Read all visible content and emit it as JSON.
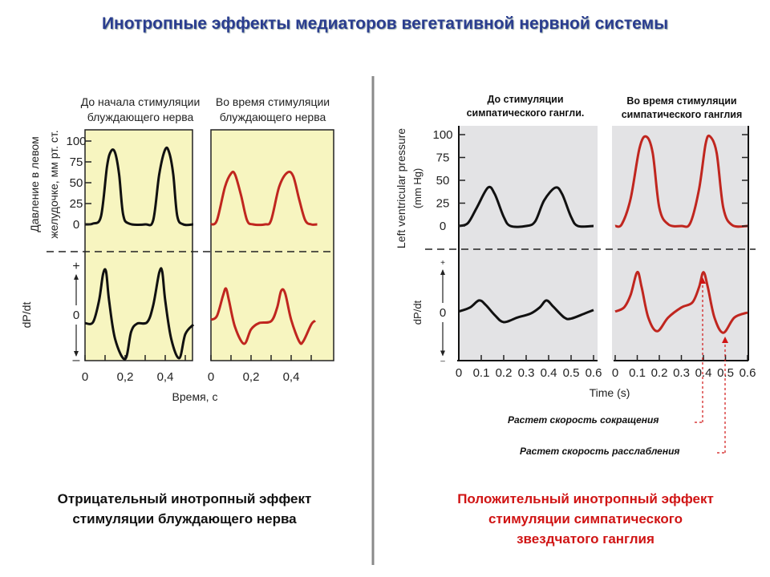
{
  "title": "Инотропные эффекты медиаторов вегетативной нервной системы",
  "colors": {
    "title": "#2a3d8f",
    "red_trace": "#c0261f",
    "black_trace": "#111111",
    "yellow_bg": "#f7f5c0",
    "grey_bg": "#e3e3e5",
    "caption_red": "#d01414"
  },
  "left": {
    "caption": [
      "Отрицательный инотропный эффект",
      "стимуляции блуждающего нерва"
    ],
    "panel_titles": [
      [
        "До начала стимуляции",
        "блуждающего нерва"
      ],
      [
        "Во время стимуляции",
        "блуждающего нерва"
      ]
    ]
  },
  "right": {
    "caption": [
      "Положительный инотропный эффект",
      "стимуляции симпатического",
      "звездчатого ганглия"
    ],
    "panel_titles": [
      [
        "До стимуляции",
        "симпатического гангли."
      ],
      [
        "Во время стимуляции",
        "симпатического ганглия"
      ]
    ],
    "annotations": [
      "Растет скорость сокращения",
      "Растет скорость расслабления"
    ]
  },
  "chart_data": [
    {
      "type": "line",
      "ylabel": "Давление в левом желудочке, мм рт. ст.",
      "y2label": "dP/dt",
      "y2_ticks": [
        "+",
        "0",
        "–"
      ],
      "xlabel": "Время, с",
      "yticks": [
        "100",
        "75",
        "50",
        "25",
        "0"
      ],
      "ylim": [
        0,
        100
      ],
      "panels": [
        {
          "title": "До начала стимуляции блуждающего нерва",
          "xticks": [
            "0",
            "0,2",
            "0,4"
          ],
          "xlim": [
            0,
            0.54
          ],
          "color": "#111111",
          "background": "#f7f5c0",
          "pressure": [
            [
              0,
              0
            ],
            [
              0.04,
              1
            ],
            [
              0.08,
              10
            ],
            [
              0.11,
              70
            ],
            [
              0.13,
              88
            ],
            [
              0.15,
              86
            ],
            [
              0.17,
              60
            ],
            [
              0.19,
              12
            ],
            [
              0.22,
              1
            ],
            [
              0.3,
              0
            ],
            [
              0.34,
              5
            ],
            [
              0.37,
              60
            ],
            [
              0.4,
              90
            ],
            [
              0.42,
              86
            ],
            [
              0.44,
              60
            ],
            [
              0.46,
              10
            ],
            [
              0.49,
              0
            ],
            [
              0.54,
              0
            ]
          ],
          "dpdt": [
            [
              0,
              -0.17
            ],
            [
              0.04,
              -0.15
            ],
            [
              0.07,
              0.3
            ],
            [
              0.09,
              0.85
            ],
            [
              0.105,
              0.9
            ],
            [
              0.12,
              0.3
            ],
            [
              0.15,
              -0.5
            ],
            [
              0.2,
              -0.92
            ],
            [
              0.23,
              -0.35
            ],
            [
              0.26,
              -0.18
            ],
            [
              0.31,
              -0.15
            ],
            [
              0.34,
              0.2
            ],
            [
              0.37,
              0.88
            ],
            [
              0.385,
              0.9
            ],
            [
              0.4,
              0.3
            ],
            [
              0.43,
              -0.5
            ],
            [
              0.47,
              -0.9
            ],
            [
              0.5,
              -0.4
            ],
            [
              0.54,
              -0.2
            ]
          ]
        },
        {
          "title": "Во время стимуляции блуждающего нерва",
          "xticks": [
            "0",
            "0,2",
            "0,4"
          ],
          "xlim": [
            0,
            0.54
          ],
          "color": "#c0261f",
          "background": "#f7f5c0",
          "pressure": [
            [
              0,
              0
            ],
            [
              0.03,
              5
            ],
            [
              0.07,
              45
            ],
            [
              0.1,
              61
            ],
            [
              0.12,
              60
            ],
            [
              0.15,
              35
            ],
            [
              0.18,
              5
            ],
            [
              0.21,
              0
            ],
            [
              0.27,
              0
            ],
            [
              0.3,
              5
            ],
            [
              0.34,
              45
            ],
            [
              0.38,
              62
            ],
            [
              0.41,
              58
            ],
            [
              0.44,
              30
            ],
            [
              0.47,
              5
            ],
            [
              0.5,
              0
            ],
            [
              0.53,
              0
            ]
          ],
          "dpdt": [
            [
              0,
              -0.1
            ],
            [
              0.03,
              -0.02
            ],
            [
              0.06,
              0.4
            ],
            [
              0.075,
              0.55
            ],
            [
              0.09,
              0.3
            ],
            [
              0.12,
              -0.25
            ],
            [
              0.165,
              -0.6
            ],
            [
              0.2,
              -0.3
            ],
            [
              0.24,
              -0.17
            ],
            [
              0.3,
              -0.13
            ],
            [
              0.33,
              0.15
            ],
            [
              0.35,
              0.5
            ],
            [
              0.37,
              0.45
            ],
            [
              0.4,
              -0.1
            ],
            [
              0.44,
              -0.55
            ],
            [
              0.46,
              -0.55
            ],
            [
              0.5,
              -0.2
            ],
            [
              0.52,
              -0.12
            ]
          ]
        }
      ]
    },
    {
      "type": "line",
      "ylabel": "Left ventricular pressure (mm Hg)",
      "y2label": "dP/dt",
      "y2_ticks": [
        "+",
        "0",
        "–"
      ],
      "xlabel": "Time (s)",
      "yticks": [
        "100",
        "75",
        "50",
        "25",
        "0"
      ],
      "ylim": [
        0,
        100
      ],
      "panels": [
        {
          "title": "До стимуляции симпатического гангли.",
          "xticks": [
            "0",
            "0.1",
            "0.2",
            "0.3",
            "0.4",
            "0.5",
            "0.6"
          ],
          "xlim": [
            0,
            0.6
          ],
          "color": "#111111",
          "background": "#e3e3e5",
          "pressure": [
            [
              0,
              0
            ],
            [
              0.04,
              3
            ],
            [
              0.08,
              20
            ],
            [
              0.13,
              42
            ],
            [
              0.16,
              35
            ],
            [
              0.2,
              10
            ],
            [
              0.23,
              0
            ],
            [
              0.3,
              0
            ],
            [
              0.34,
              5
            ],
            [
              0.38,
              28
            ],
            [
              0.43,
              42
            ],
            [
              0.46,
              35
            ],
            [
              0.5,
              10
            ],
            [
              0.53,
              0
            ],
            [
              0.6,
              0
            ]
          ],
          "dpdt": [
            [
              0,
              0.02
            ],
            [
              0.05,
              0.1
            ],
            [
              0.09,
              0.24
            ],
            [
              0.12,
              0.15
            ],
            [
              0.16,
              -0.05
            ],
            [
              0.2,
              -0.19
            ],
            [
              0.26,
              -0.1
            ],
            [
              0.32,
              -0.02
            ],
            [
              0.36,
              0.1
            ],
            [
              0.39,
              0.24
            ],
            [
              0.42,
              0.12
            ],
            [
              0.47,
              -0.1
            ],
            [
              0.5,
              -0.12
            ],
            [
              0.56,
              -0.02
            ],
            [
              0.6,
              0.05
            ]
          ]
        },
        {
          "title": "Во время стимуляции симпатического ганглия",
          "xticks": [
            "0",
            "0.1",
            "0.2",
            "0.3",
            "0.4",
            "0.5",
            "0.6"
          ],
          "xlim": [
            0,
            0.6
          ],
          "color": "#c0261f",
          "background": "#e3e3e5",
          "pressure": [
            [
              0,
              0
            ],
            [
              0.03,
              2
            ],
            [
              0.07,
              30
            ],
            [
              0.11,
              85
            ],
            [
              0.14,
              98
            ],
            [
              0.17,
              80
            ],
            [
              0.2,
              20
            ],
            [
              0.24,
              2
            ],
            [
              0.3,
              0
            ],
            [
              0.34,
              3
            ],
            [
              0.38,
              40
            ],
            [
              0.41,
              90
            ],
            [
              0.43,
              98
            ],
            [
              0.46,
              80
            ],
            [
              0.49,
              20
            ],
            [
              0.53,
              1
            ],
            [
              0.6,
              0
            ]
          ],
          "dpdt": [
            [
              0,
              0.02
            ],
            [
              0.04,
              0.1
            ],
            [
              0.07,
              0.35
            ],
            [
              0.1,
              0.8
            ],
            [
              0.12,
              0.5
            ],
            [
              0.15,
              -0.1
            ],
            [
              0.19,
              -0.37
            ],
            [
              0.24,
              -0.1
            ],
            [
              0.3,
              0.1
            ],
            [
              0.35,
              0.2
            ],
            [
              0.38,
              0.5
            ],
            [
              0.4,
              0.8
            ],
            [
              0.42,
              0.5
            ],
            [
              0.45,
              -0.1
            ],
            [
              0.49,
              -0.4
            ],
            [
              0.54,
              -0.1
            ],
            [
              0.6,
              0
            ]
          ]
        }
      ]
    }
  ]
}
